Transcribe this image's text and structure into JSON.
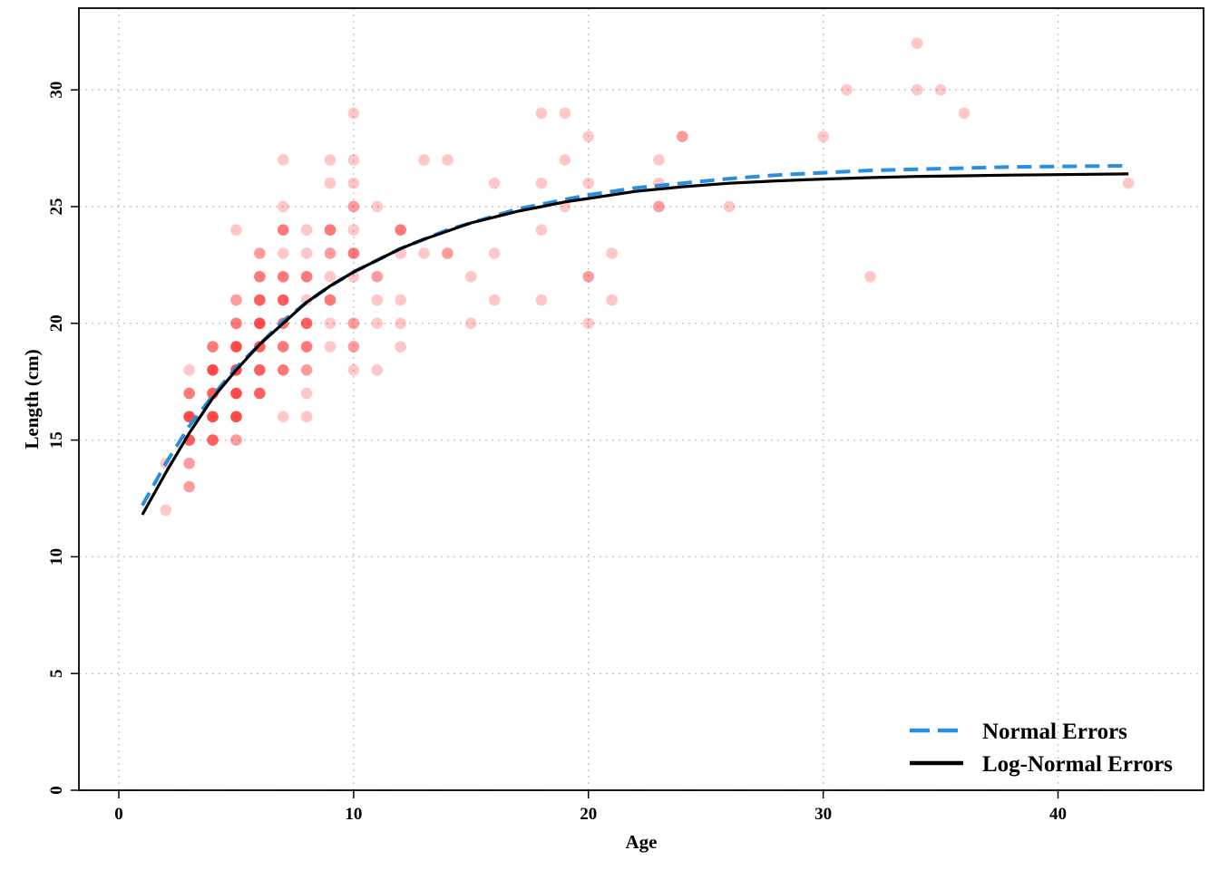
{
  "chart_data": {
    "type": "scatter",
    "title": "",
    "xlabel": "Age",
    "ylabel": "Length (cm)",
    "xlim": [
      -1.7,
      46.2
    ],
    "ylim": [
      0,
      33.5
    ],
    "xticks": [
      0,
      10,
      20,
      30,
      40
    ],
    "yticks": [
      0,
      5,
      10,
      15,
      20,
      25,
      30
    ],
    "grid": true,
    "legend_position": "bottom-right",
    "colors": {
      "points": "#ff0000",
      "normal_errors": "#2b8fe0",
      "lognormal_errors": "#000000"
    },
    "points": [
      {
        "x": 2,
        "y": 12,
        "n": 1
      },
      {
        "x": 2,
        "y": 14,
        "n": 1
      },
      {
        "x": 3,
        "y": 13,
        "n": 2
      },
      {
        "x": 3,
        "y": 14,
        "n": 2
      },
      {
        "x": 3,
        "y": 15,
        "n": 4
      },
      {
        "x": 3,
        "y": 16,
        "n": 5
      },
      {
        "x": 3,
        "y": 17,
        "n": 3
      },
      {
        "x": 3,
        "y": 18,
        "n": 1
      },
      {
        "x": 4,
        "y": 15,
        "n": 4
      },
      {
        "x": 4,
        "y": 16,
        "n": 5
      },
      {
        "x": 4,
        "y": 17,
        "n": 4
      },
      {
        "x": 4,
        "y": 18,
        "n": 5
      },
      {
        "x": 4,
        "y": 19,
        "n": 3
      },
      {
        "x": 5,
        "y": 15,
        "n": 2
      },
      {
        "x": 5,
        "y": 16,
        "n": 5
      },
      {
        "x": 5,
        "y": 17,
        "n": 5
      },
      {
        "x": 5,
        "y": 18,
        "n": 5
      },
      {
        "x": 5,
        "y": 19,
        "n": 5
      },
      {
        "x": 5,
        "y": 20,
        "n": 3
      },
      {
        "x": 5,
        "y": 21,
        "n": 2
      },
      {
        "x": 5,
        "y": 24,
        "n": 1
      },
      {
        "x": 6,
        "y": 17,
        "n": 4
      },
      {
        "x": 6,
        "y": 18,
        "n": 4
      },
      {
        "x": 6,
        "y": 19,
        "n": 4
      },
      {
        "x": 6,
        "y": 20,
        "n": 5
      },
      {
        "x": 6,
        "y": 21,
        "n": 4
      },
      {
        "x": 6,
        "y": 22,
        "n": 3
      },
      {
        "x": 6,
        "y": 23,
        "n": 2
      },
      {
        "x": 7,
        "y": 16,
        "n": 1
      },
      {
        "x": 7,
        "y": 18,
        "n": 3
      },
      {
        "x": 7,
        "y": 19,
        "n": 3
      },
      {
        "x": 7,
        "y": 20,
        "n": 3
      },
      {
        "x": 7,
        "y": 21,
        "n": 4
      },
      {
        "x": 7,
        "y": 22,
        "n": 3
      },
      {
        "x": 7,
        "y": 23,
        "n": 1
      },
      {
        "x": 7,
        "y": 24,
        "n": 3
      },
      {
        "x": 7,
        "y": 25,
        "n": 1
      },
      {
        "x": 7,
        "y": 27,
        "n": 1
      },
      {
        "x": 8,
        "y": 16,
        "n": 1
      },
      {
        "x": 8,
        "y": 17,
        "n": 1
      },
      {
        "x": 8,
        "y": 18,
        "n": 2
      },
      {
        "x": 8,
        "y": 19,
        "n": 3
      },
      {
        "x": 8,
        "y": 20,
        "n": 4
      },
      {
        "x": 8,
        "y": 21,
        "n": 1
      },
      {
        "x": 8,
        "y": 22,
        "n": 3
      },
      {
        "x": 8,
        "y": 23,
        "n": 1
      },
      {
        "x": 8,
        "y": 24,
        "n": 1
      },
      {
        "x": 9,
        "y": 19,
        "n": 1
      },
      {
        "x": 9,
        "y": 20,
        "n": 1
      },
      {
        "x": 9,
        "y": 21,
        "n": 3
      },
      {
        "x": 9,
        "y": 22,
        "n": 1
      },
      {
        "x": 9,
        "y": 23,
        "n": 2
      },
      {
        "x": 9,
        "y": 24,
        "n": 3
      },
      {
        "x": 9,
        "y": 26,
        "n": 1
      },
      {
        "x": 9,
        "y": 27,
        "n": 1
      },
      {
        "x": 10,
        "y": 18,
        "n": 1
      },
      {
        "x": 10,
        "y": 19,
        "n": 2
      },
      {
        "x": 10,
        "y": 20,
        "n": 2
      },
      {
        "x": 10,
        "y": 22,
        "n": 1
      },
      {
        "x": 10,
        "y": 23,
        "n": 3
      },
      {
        "x": 10,
        "y": 24,
        "n": 1
      },
      {
        "x": 10,
        "y": 25,
        "n": 2
      },
      {
        "x": 10,
        "y": 26,
        "n": 1
      },
      {
        "x": 10,
        "y": 27,
        "n": 1
      },
      {
        "x": 10,
        "y": 29,
        "n": 1
      },
      {
        "x": 11,
        "y": 18,
        "n": 1
      },
      {
        "x": 11,
        "y": 20,
        "n": 1
      },
      {
        "x": 11,
        "y": 21,
        "n": 1
      },
      {
        "x": 11,
        "y": 22,
        "n": 2
      },
      {
        "x": 11,
        "y": 25,
        "n": 1
      },
      {
        "x": 12,
        "y": 19,
        "n": 1
      },
      {
        "x": 12,
        "y": 20,
        "n": 1
      },
      {
        "x": 12,
        "y": 21,
        "n": 1
      },
      {
        "x": 12,
        "y": 23,
        "n": 1
      },
      {
        "x": 12,
        "y": 24,
        "n": 3
      },
      {
        "x": 13,
        "y": 23,
        "n": 1
      },
      {
        "x": 13,
        "y": 27,
        "n": 1
      },
      {
        "x": 14,
        "y": 23,
        "n": 2
      },
      {
        "x": 14,
        "y": 27,
        "n": 1
      },
      {
        "x": 15,
        "y": 20,
        "n": 1
      },
      {
        "x": 15,
        "y": 22,
        "n": 1
      },
      {
        "x": 16,
        "y": 21,
        "n": 1
      },
      {
        "x": 16,
        "y": 23,
        "n": 1
      },
      {
        "x": 16,
        "y": 26,
        "n": 1
      },
      {
        "x": 18,
        "y": 21,
        "n": 1
      },
      {
        "x": 18,
        "y": 24,
        "n": 1
      },
      {
        "x": 18,
        "y": 26,
        "n": 1
      },
      {
        "x": 18,
        "y": 29,
        "n": 1
      },
      {
        "x": 19,
        "y": 25,
        "n": 1
      },
      {
        "x": 19,
        "y": 27,
        "n": 1
      },
      {
        "x": 19,
        "y": 29,
        "n": 1
      },
      {
        "x": 20,
        "y": 20,
        "n": 1
      },
      {
        "x": 20,
        "y": 22,
        "n": 2
      },
      {
        "x": 20,
        "y": 26,
        "n": 1
      },
      {
        "x": 20,
        "y": 28,
        "n": 1
      },
      {
        "x": 21,
        "y": 21,
        "n": 1
      },
      {
        "x": 21,
        "y": 23,
        "n": 1
      },
      {
        "x": 23,
        "y": 25,
        "n": 2
      },
      {
        "x": 23,
        "y": 26,
        "n": 1
      },
      {
        "x": 23,
        "y": 27,
        "n": 1
      },
      {
        "x": 24,
        "y": 28,
        "n": 2
      },
      {
        "x": 26,
        "y": 25,
        "n": 1
      },
      {
        "x": 30,
        "y": 28,
        "n": 1
      },
      {
        "x": 31,
        "y": 30,
        "n": 1
      },
      {
        "x": 32,
        "y": 22,
        "n": 1
      },
      {
        "x": 34,
        "y": 30,
        "n": 1
      },
      {
        "x": 34,
        "y": 32,
        "n": 1
      },
      {
        "x": 35,
        "y": 30,
        "n": 1
      },
      {
        "x": 36,
        "y": 29,
        "n": 1
      },
      {
        "x": 43,
        "y": 26,
        "n": 1
      }
    ],
    "series": [
      {
        "name": "Normal Errors",
        "style": "dashed",
        "color": "#2b8fe0",
        "x": [
          1,
          2,
          3,
          4,
          5,
          6,
          7,
          8,
          9,
          10,
          11,
          12,
          13,
          14,
          15,
          16,
          17,
          18,
          19,
          20,
          22,
          24,
          26,
          28,
          30,
          32,
          34,
          36,
          38,
          40,
          43
        ],
        "y": [
          12.2,
          14.0,
          15.6,
          16.9,
          18.1,
          19.1,
          20.1,
          20.9,
          21.6,
          22.2,
          22.7,
          23.2,
          23.6,
          24.0,
          24.3,
          24.6,
          24.9,
          25.1,
          25.3,
          25.5,
          25.8,
          26.0,
          26.2,
          26.35,
          26.45,
          26.55,
          26.6,
          26.65,
          26.7,
          26.72,
          26.75
        ]
      },
      {
        "name": "Log-Normal Errors",
        "style": "solid",
        "color": "#000000",
        "x": [
          1,
          2,
          3,
          4,
          5,
          6,
          7,
          8,
          9,
          10,
          11,
          12,
          13,
          14,
          15,
          16,
          17,
          18,
          19,
          20,
          22,
          24,
          26,
          28,
          30,
          32,
          34,
          36,
          38,
          40,
          43
        ],
        "y": [
          11.8,
          13.6,
          15.3,
          16.8,
          18.0,
          19.1,
          20.0,
          20.9,
          21.6,
          22.2,
          22.7,
          23.2,
          23.6,
          23.95,
          24.3,
          24.55,
          24.8,
          25.0,
          25.2,
          25.35,
          25.65,
          25.85,
          26.0,
          26.1,
          26.18,
          26.24,
          26.29,
          26.32,
          26.35,
          26.37,
          26.4
        ]
      }
    ],
    "legend": [
      {
        "label": "Normal Errors",
        "style": "dashed",
        "color": "#2b8fe0"
      },
      {
        "label": "Log-Normal Errors",
        "style": "solid",
        "color": "#000000"
      }
    ]
  }
}
